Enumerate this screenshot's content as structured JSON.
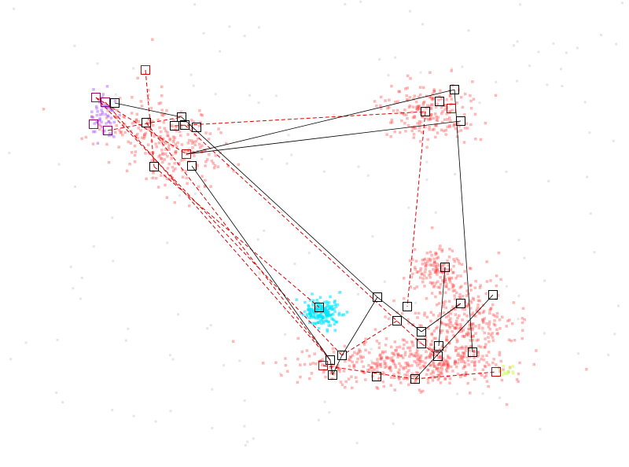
{
  "colors": {
    "background": "#ffffff",
    "cluster_red": "#ff3333",
    "cluster_cyan": "#00e5ff",
    "cluster_purple": "#a64dff",
    "cluster_lime": "#ccff66",
    "edge_solid": "#000000",
    "edge_dashed": "#dd0000"
  },
  "clusters": [
    {
      "id": "top-left",
      "color": "cluster_red"
    },
    {
      "id": "top-right",
      "color": "cluster_red"
    },
    {
      "id": "center-right",
      "color": "cluster_red"
    },
    {
      "id": "bottom-right",
      "color": "cluster_red"
    },
    {
      "id": "bottom-center",
      "color": "cluster_red"
    },
    {
      "id": "cyan",
      "color": "cluster_cyan"
    },
    {
      "id": "purple",
      "color": "cluster_purple"
    },
    {
      "id": "lime",
      "color": "cluster_lime"
    }
  ],
  "node_count": 44,
  "edge_style": {
    "solid": "black",
    "dashed": "red"
  }
}
